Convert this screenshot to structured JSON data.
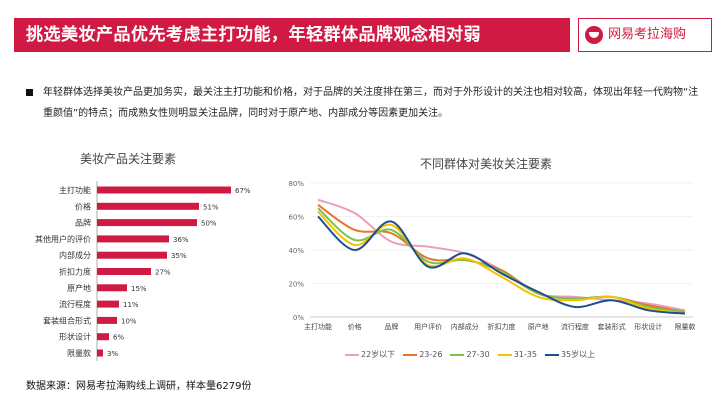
{
  "header": {
    "title": "挑选美妆产品优先考虑主打功能，年轻群体品牌观念相对弱",
    "brand": "网易考拉海购",
    "brand_color": "#d11a43"
  },
  "summary": "年轻群体选择美妆产品更加务实，最关注主打功能和价格，对于品牌的关注度排在第三，而对于外形设计的关注也相对较高，体现出年轻一代购物“注重颜值”的特点；而成熟女性则明显关注品牌，同时对于原产地、内部成分等因素更加关注。",
  "source": "数据来源：网易考拉海购线上调研，样本量6279份",
  "chart_data": [
    {
      "type": "bar",
      "orientation": "horizontal",
      "title": "美妆产品关注要素",
      "categories": [
        "主打功能",
        "价格",
        "品牌",
        "其他用户的评价",
        "内部成分",
        "折扣力度",
        "原产地",
        "流行程度",
        "套装组合形式",
        "形状设计",
        "限量款"
      ],
      "values": [
        67,
        51,
        50,
        36,
        35,
        27,
        15,
        11,
        10,
        6,
        3
      ],
      "value_labels": [
        "67%",
        "51%",
        "50%",
        "36%",
        "35%",
        "27%",
        "15%",
        "11%",
        "10%",
        "6%",
        "3%"
      ],
      "unit": "%",
      "color": "#d11a43"
    },
    {
      "type": "line",
      "title": "不同群体对美妆关注要素",
      "categories": [
        "主打功能",
        "价格",
        "品牌",
        "用户评价",
        "内部成分",
        "折扣力度",
        "原产地",
        "流行程度",
        "套装形式",
        "形状设计",
        "限量款"
      ],
      "ylim": [
        0,
        80
      ],
      "yticks": [
        0,
        20,
        40,
        60,
        80
      ],
      "ytick_labels": [
        "0%",
        "20%",
        "40%",
        "60%",
        "80%"
      ],
      "series": [
        {
          "name": "22岁以下",
          "color": "#e9a0bc",
          "values": [
            70,
            62,
            45,
            42,
            38,
            28,
            14,
            12,
            10,
            8,
            4
          ]
        },
        {
          "name": "23-26",
          "color": "#e8752b",
          "values": [
            67,
            52,
            50,
            35,
            34,
            28,
            14,
            11,
            12,
            7,
            3
          ]
        },
        {
          "name": "27-30",
          "color": "#7cc24a",
          "values": [
            65,
            46,
            52,
            33,
            34,
            27,
            14,
            11,
            12,
            6,
            3
          ]
        },
        {
          "name": "31-35",
          "color": "#f3c300",
          "values": [
            63,
            43,
            55,
            31,
            35,
            24,
            12,
            10,
            12,
            5,
            2
          ]
        },
        {
          "name": "35岁以上",
          "color": "#1f4e91",
          "values": [
            60,
            40,
            57,
            30,
            38,
            26,
            15,
            6,
            10,
            4,
            2
          ]
        }
      ]
    }
  ]
}
